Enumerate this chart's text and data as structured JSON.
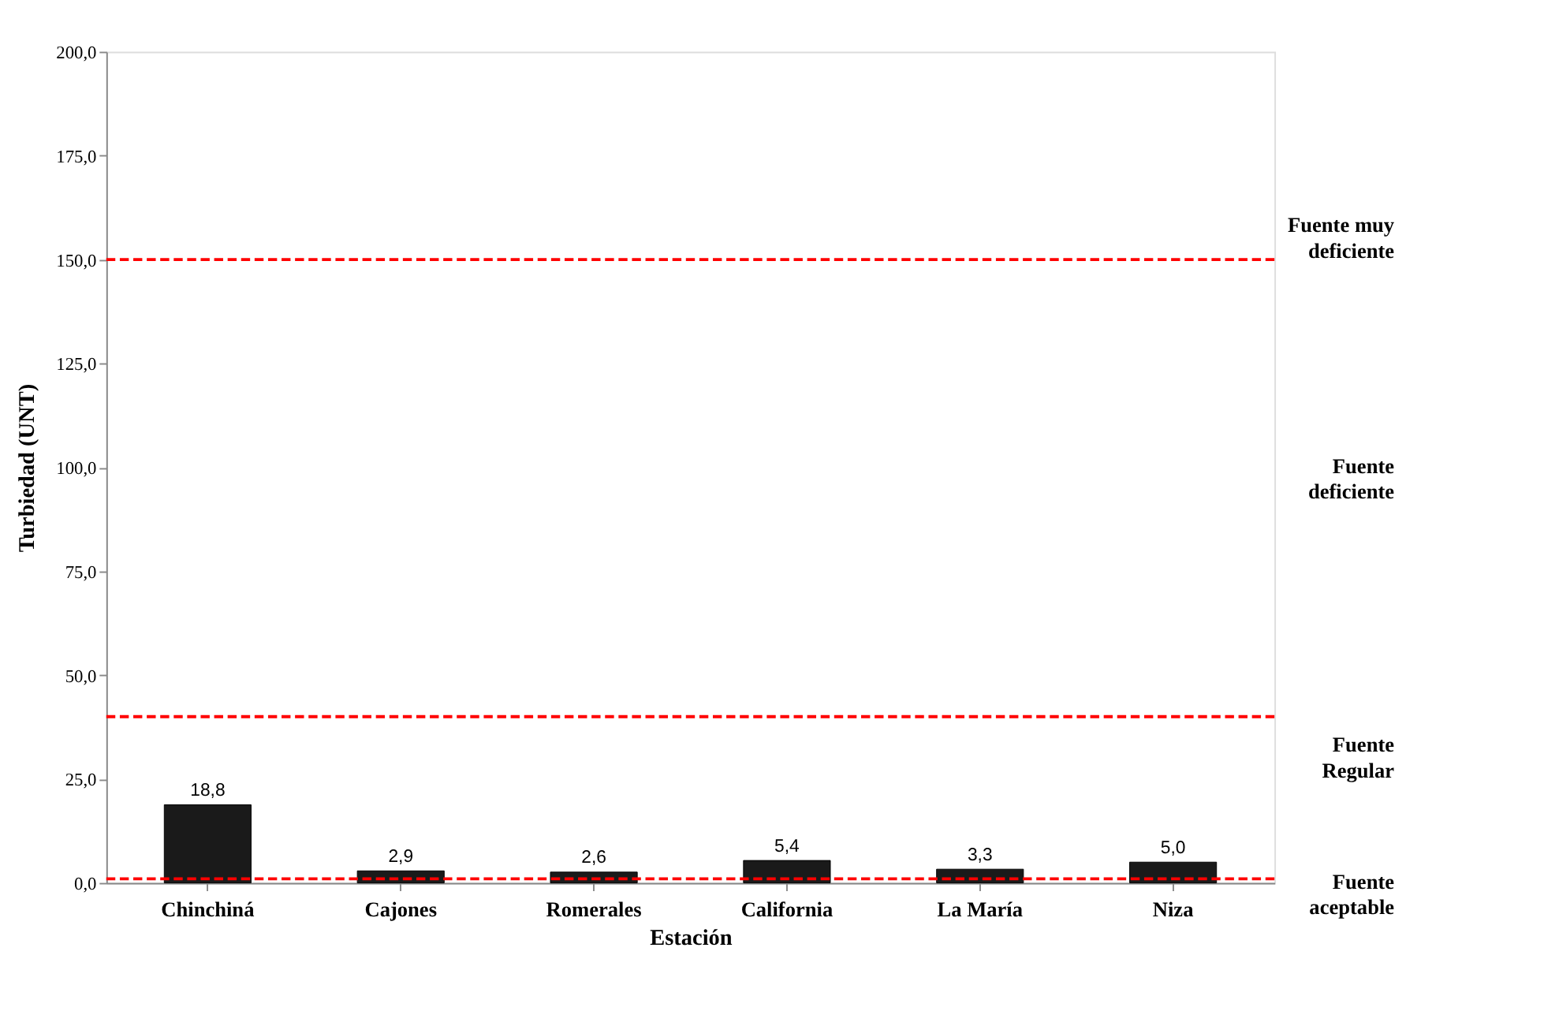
{
  "chart_data": {
    "type": "bar",
    "xlabel": "Estación",
    "ylabel": "Turbiedad  (UNT)",
    "categories": [
      "Chinchiná",
      "Cajones",
      "Romerales",
      "California",
      "La María",
      "Niza"
    ],
    "values": [
      18.8,
      2.9,
      2.6,
      5.4,
      3.3,
      5.0
    ],
    "value_labels": [
      "18,8",
      "2,9",
      "2,6",
      "5,4",
      "3,3",
      "5,0"
    ],
    "color": "#1a1a1a",
    "ylim": [
      0,
      200
    ],
    "yticks": [
      {
        "value": 0,
        "label": "0,0"
      },
      {
        "value": 25,
        "label": "25,0"
      },
      {
        "value": 50,
        "label": "50,0"
      },
      {
        "value": 75,
        "label": "75,0"
      },
      {
        "value": 100,
        "label": "100,0"
      },
      {
        "value": 125,
        "label": "125,0"
      },
      {
        "value": 150,
        "label": "150,0"
      },
      {
        "value": 175,
        "label": "175,0"
      },
      {
        "value": 200,
        "label": "200,0"
      }
    ],
    "ref_lines": [
      {
        "axis": "y",
        "value": 150,
        "color": "#ff0000",
        "line_style": "dashed"
      },
      {
        "axis": "y",
        "value": 40,
        "color": "#ff0000",
        "line_style": "dashed"
      },
      {
        "axis": "y",
        "value": 1,
        "color": "#ff0000",
        "line_style": "dashed"
      }
    ],
    "annotations": [
      "Fuente muy\ndeficiente",
      "Fuente\ndeficiente",
      "Fuente\nRegular",
      "Fuente\naceptable"
    ],
    "grid": false
  }
}
